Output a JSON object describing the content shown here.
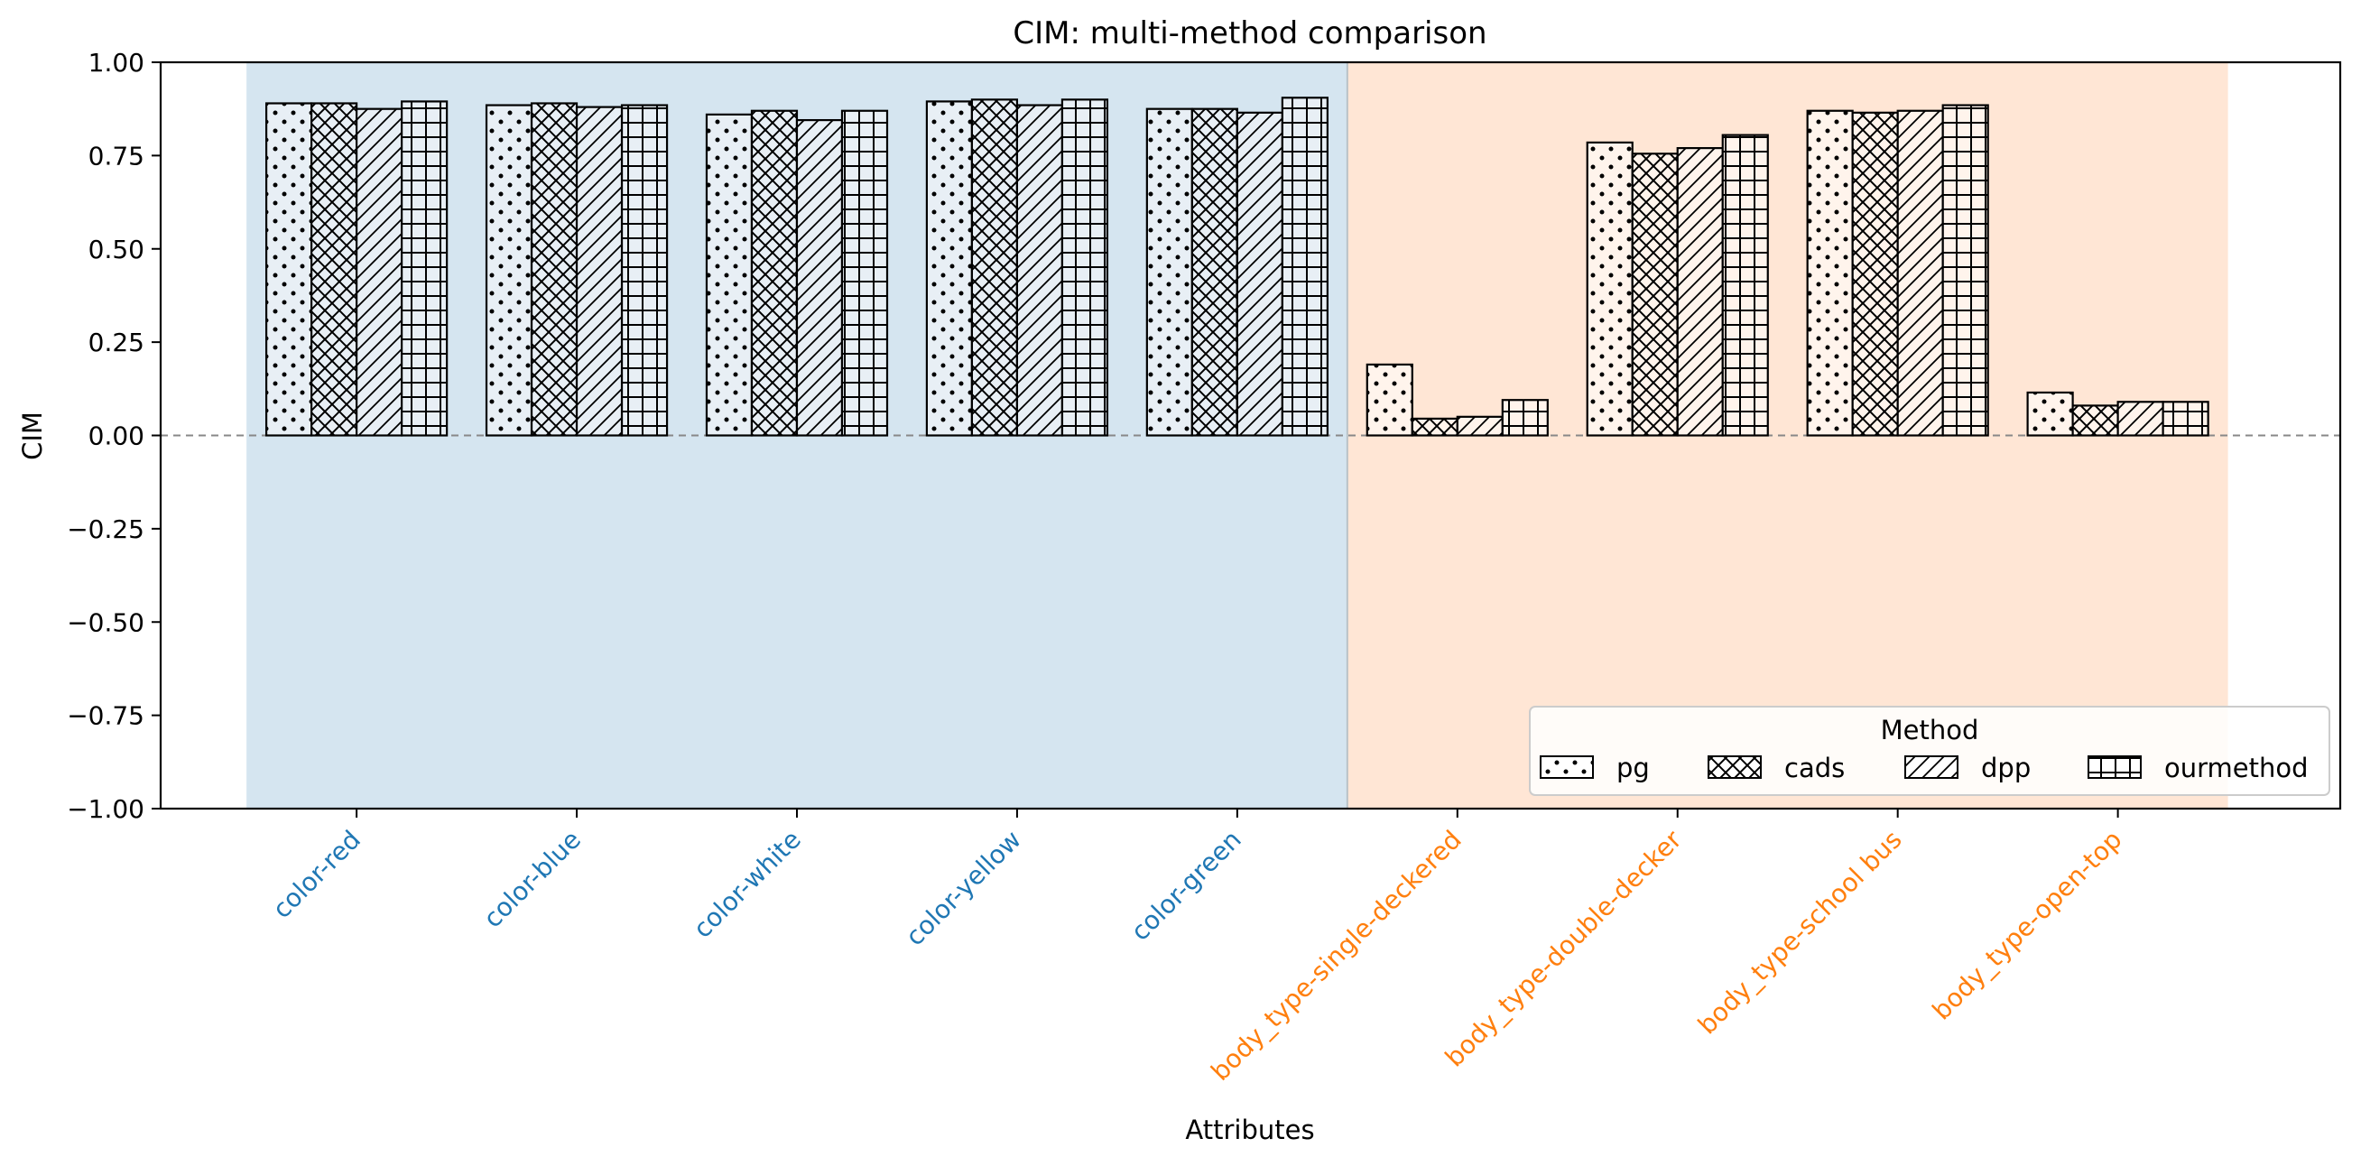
{
  "chart_data": {
    "type": "bar",
    "title": "CIM: multi-method comparison",
    "xlabel": "Attributes",
    "ylabel": "CIM",
    "ylim": [
      -1.0,
      1.0
    ],
    "yticks": [
      "1.00",
      "0.75",
      "0.50",
      "0.25",
      "0.00",
      "−0.25",
      "−0.50",
      "−0.75",
      "−1.00"
    ],
    "ytick_values": [
      1.0,
      0.75,
      0.5,
      0.25,
      0.0,
      -0.25,
      -0.5,
      -0.75,
      -1.0
    ],
    "reference_line": 0.0,
    "categories": [
      "color-red",
      "color-blue",
      "color-white",
      "color-yellow",
      "color-green",
      "body_type-single-deckered",
      "body_type-double-decker",
      "body_type-school bus",
      "body_type-open-top"
    ],
    "category_groups": [
      {
        "name": "color",
        "count": 5,
        "label_color": "#1f77b4",
        "bg_color": "#d5e5f0"
      },
      {
        "name": "body_type",
        "count": 4,
        "label_color": "#ff7f0e",
        "bg_color": "#ffe6d5"
      }
    ],
    "series": [
      {
        "name": "pg",
        "hatch": "dots",
        "values": [
          0.89,
          0.885,
          0.86,
          0.895,
          0.875,
          0.19,
          0.785,
          0.87,
          0.115
        ]
      },
      {
        "name": "cads",
        "hatch": "crosshatch",
        "values": [
          0.89,
          0.89,
          0.87,
          0.9,
          0.875,
          0.045,
          0.755,
          0.865,
          0.08
        ]
      },
      {
        "name": "dpp",
        "hatch": "diagonal",
        "values": [
          0.875,
          0.88,
          0.845,
          0.885,
          0.865,
          0.05,
          0.77,
          0.87,
          0.09
        ]
      },
      {
        "name": "ourmethod",
        "hatch": "grid",
        "values": [
          0.895,
          0.885,
          0.87,
          0.9,
          0.905,
          0.095,
          0.805,
          0.885,
          0.09
        ]
      }
    ],
    "legend": {
      "title": "Method",
      "placement": "lower-right",
      "columns": 4
    },
    "grid": false
  }
}
